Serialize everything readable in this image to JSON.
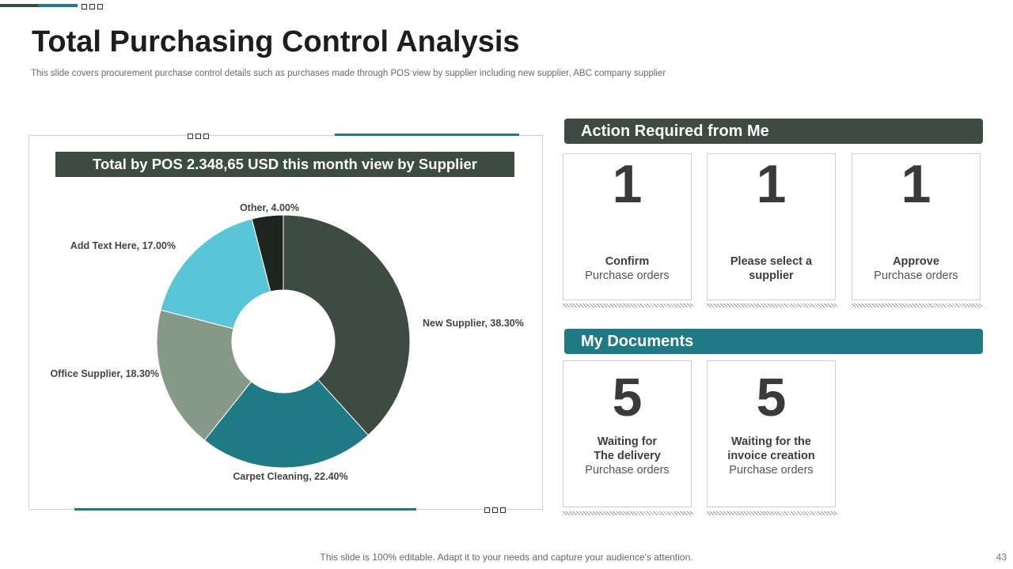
{
  "title": "Total Purchasing Control Analysis",
  "subtitle": "This slide covers procurement purchase control details such as purchases made through POS view by supplier including new supplier, ABC company supplier",
  "colors": {
    "dark": "#3d4b43",
    "teal": "#1f7a86",
    "sage": "#869888",
    "sky": "#5bc5d8",
    "black": "#1e2420"
  },
  "chart_data": {
    "type": "pie",
    "style": "donut",
    "title": "Total by POS 2.348,65 USD this month view by Supplier",
    "slices": [
      {
        "label": "New Supplier, 38.30%",
        "name": "New Supplier",
        "value": 38.3,
        "color": "#3d4b43"
      },
      {
        "label": "Carpet Cleaning, 22.40%",
        "name": "Carpet Cleaning",
        "value": 22.4,
        "color": "#1f7a86"
      },
      {
        "label": "Office Supplier, 18.30%",
        "name": "Office Supplier",
        "value": 18.3,
        "color": "#869888"
      },
      {
        "label": "Add Text Here, 17.00%",
        "name": "Add Text Here",
        "value": 17.0,
        "color": "#5bc5d8"
      },
      {
        "label": "Other, 4.00%",
        "name": "Other",
        "value": 4.0,
        "color": "#1e2420"
      }
    ]
  },
  "action_section": {
    "title": "Action Required from Me",
    "cards": [
      {
        "number": "1",
        "line1": "Confirm",
        "line2": "",
        "sub": "Purchase orders"
      },
      {
        "number": "1",
        "line1": "Please select a",
        "line2": "supplier",
        "sub": ""
      },
      {
        "number": "1",
        "line1": "Approve",
        "line2": "",
        "sub": "Purchase orders"
      }
    ]
  },
  "documents_section": {
    "title": "My Documents",
    "cards": [
      {
        "number": "5",
        "line1": "Waiting for",
        "line2": "The delivery",
        "sub": "Purchase orders"
      },
      {
        "number": "5",
        "line1": "Waiting for the",
        "line2": "invoice creation",
        "sub": "Purchase orders"
      }
    ]
  },
  "footer": "This slide is 100% editable. Adapt it to your needs and capture your audience's attention.",
  "page_number": "43"
}
